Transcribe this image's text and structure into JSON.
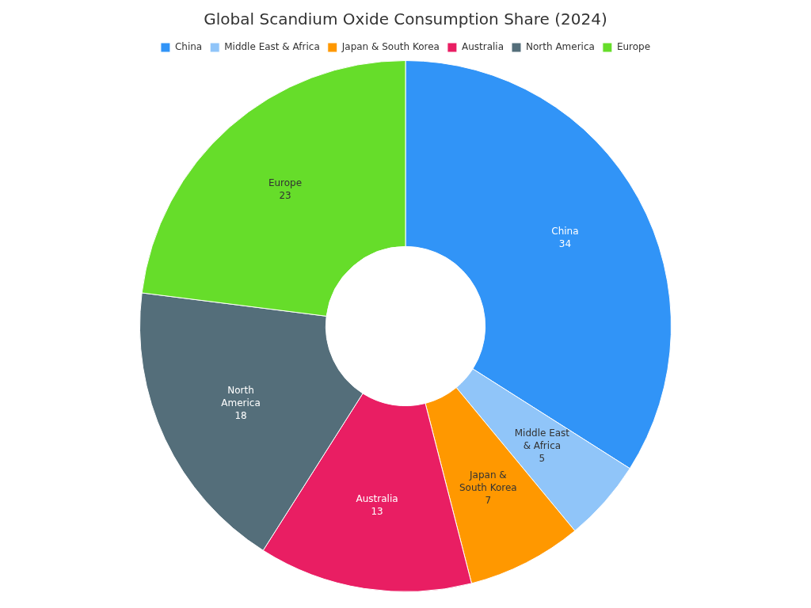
{
  "chart_data": {
    "type": "donut",
    "title": "Global Scandium Oxide Consumption Share (2024)",
    "categories": [
      "China",
      "Middle East & Africa",
      "Japan & South Korea",
      "Australia",
      "North America",
      "Europe"
    ],
    "values": [
      34,
      5,
      7,
      13,
      18,
      23
    ],
    "colors": [
      "#3194f7",
      "#90c5f9",
      "#ff9800",
      "#e91e63",
      "#546e7a",
      "#66dd2a"
    ],
    "data_labels": true,
    "legend": "top"
  }
}
